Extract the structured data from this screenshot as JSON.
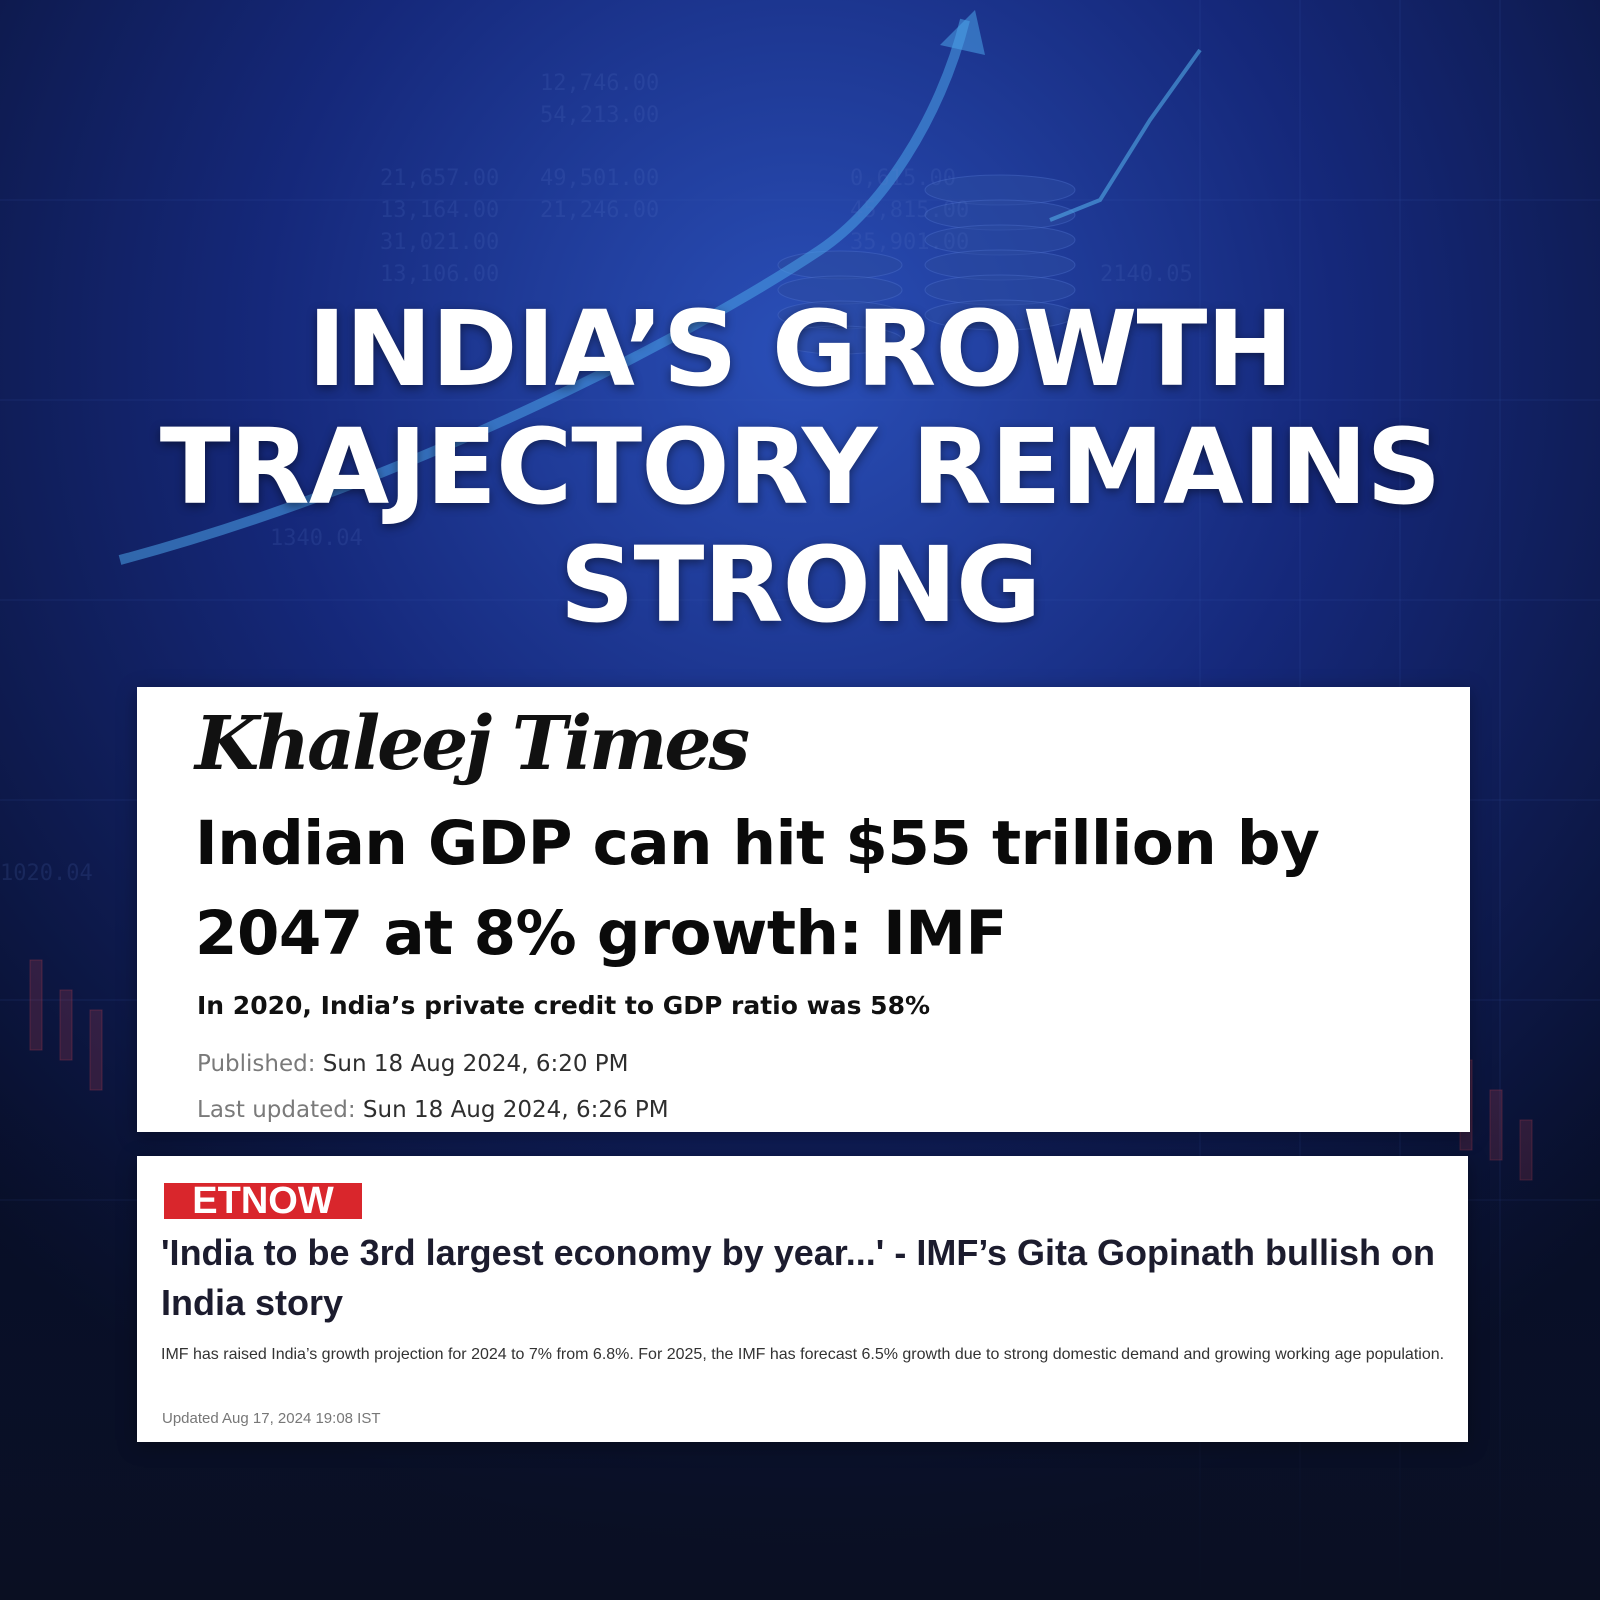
{
  "headline": {
    "line1": "INDIA’S GROWTH",
    "line2": "TRAJECTORY REMAINS",
    "line3": "STRONG"
  },
  "khaleej_times": {
    "logo": "Khaleej Times",
    "title": "Indian GDP can hit $55 trillion by 2047 at 8% growth: IMF",
    "subtitle": "In 2020, India’s private credit to GDP ratio was 58%",
    "published_label": "Published:",
    "published_value": "Sun 18 Aug 2024, 6:20 PM",
    "updated_label": "Last updated:",
    "updated_value": "Sun 18 Aug 2024, 6:26 PM"
  },
  "et_now": {
    "logo": "ETNOW",
    "title": "'India to be 3rd largest economy by year...' - IMF’s Gita Gopinath bullish on India story",
    "summary": "IMF has raised India’s growth projection for 2024 to 7% from 6.8%. For 2025, the IMF has forecast 6.5% growth due to strong domestic demand and growing working age population.",
    "updated": "Updated Aug 17, 2024 19:08 IST"
  },
  "colors": {
    "background_dark": "#0b1433",
    "background_glow": "#1f3f9c",
    "et_red": "#d9262c",
    "card_white": "#ffffff"
  }
}
